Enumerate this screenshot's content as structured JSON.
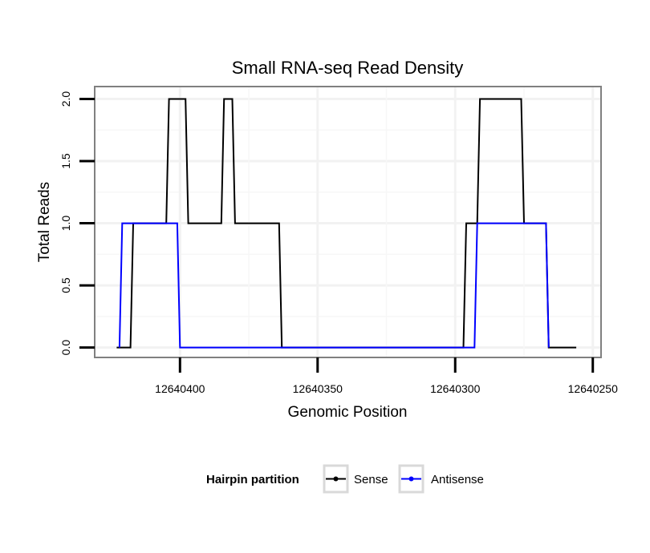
{
  "chart_data": {
    "type": "line",
    "title": "Small RNA-seq Read Density",
    "xlabel": "Genomic Position",
    "ylabel": "Total Reads",
    "xlim": [
      12640431,
      12640247
    ],
    "x_reversed": true,
    "ylim": [
      -0.08,
      2.1
    ],
    "xticks": [
      12640400,
      12640350,
      12640300,
      12640250
    ],
    "xtick_labels": [
      "12640400",
      "12640350",
      "12640300",
      "12640250"
    ],
    "yticks": [
      0,
      0.5,
      1,
      1.5,
      2
    ],
    "ytick_labels": [
      "0.0",
      "0.5",
      "1.0",
      "1.5",
      "2.0"
    ],
    "grid": true,
    "legend_title": "Hairpin partition",
    "legend_position": "bottom",
    "series": [
      {
        "name": "Sense",
        "color": "#000000",
        "x": [
          12640423,
          12640418,
          12640417,
          12640405,
          12640404,
          12640398,
          12640397,
          12640385,
          12640384,
          12640381,
          12640380,
          12640364,
          12640363,
          12640297,
          12640296,
          12640292,
          12640291,
          12640276,
          12640275,
          12640267,
          12640266,
          12640256
        ],
        "y": [
          0,
          0,
          1,
          1,
          2,
          2,
          1,
          1,
          2,
          2,
          1,
          1,
          0,
          0,
          1,
          1,
          2,
          2,
          1,
          1,
          0,
          0
        ]
      },
      {
        "name": "Antisense",
        "color": "#0000ff",
        "x": [
          12640422,
          12640421,
          12640401,
          12640400,
          12640363,
          12640362,
          12640293,
          12640292,
          12640267,
          12640266
        ],
        "y": [
          0,
          1,
          1,
          0,
          0,
          0,
          0,
          1,
          1,
          0
        ]
      }
    ]
  }
}
